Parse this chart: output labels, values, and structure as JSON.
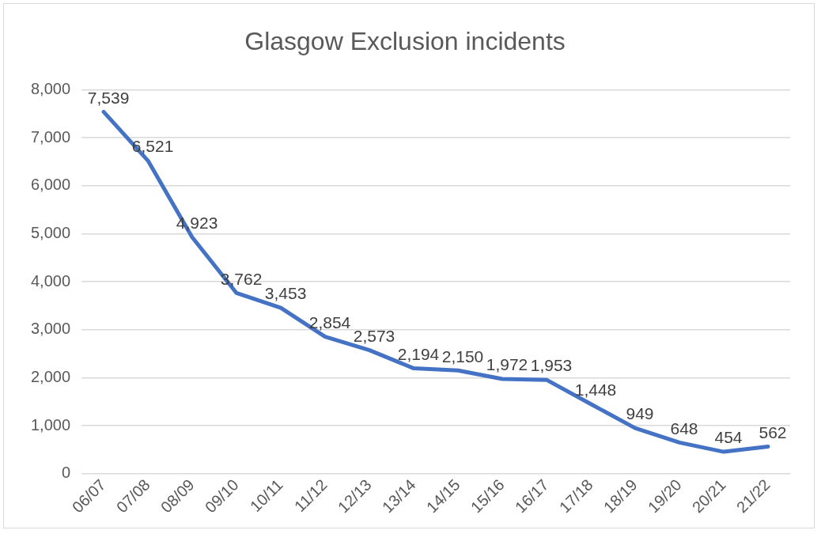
{
  "chart_data": {
    "type": "line",
    "title": "Glasgow Exclusion incidents",
    "categories": [
      "06/07",
      "07/08",
      "08/09",
      "09/10",
      "10/11",
      "11/12",
      "12/13",
      "13/14",
      "14/15",
      "15/16",
      "16/17",
      "17/18",
      "18/19",
      "19/20",
      "20/21",
      "21/22"
    ],
    "series": [
      {
        "color": "#4472c4",
        "values": [
          7539,
          6521,
          4923,
          3762,
          3453,
          2854,
          2573,
          2194,
          2150,
          1972,
          1953,
          1448,
          949,
          648,
          454,
          562
        ],
        "value_labels": [
          "7,539",
          "6,521",
          "4,923",
          "3,762",
          "3,453",
          "2,854",
          "2,573",
          "2,194",
          "2,150",
          "1,972",
          "1,953",
          "1,448",
          "949",
          "648",
          "454",
          "562"
        ]
      }
    ],
    "ylim": [
      0,
      8000
    ],
    "yticks": [
      {
        "value": 0,
        "label": "0"
      },
      {
        "value": 1000,
        "label": "1,000"
      },
      {
        "value": 2000,
        "label": "2,000"
      },
      {
        "value": 3000,
        "label": "3,000"
      },
      {
        "value": 4000,
        "label": "4,000"
      },
      {
        "value": 5000,
        "label": "5,000"
      },
      {
        "value": 6000,
        "label": "6,000"
      },
      {
        "value": 7000,
        "label": "7,000"
      },
      {
        "value": 8000,
        "label": "8,000"
      }
    ],
    "grid": "y",
    "legend": false,
    "marker": "none",
    "line_style": "solid"
  }
}
